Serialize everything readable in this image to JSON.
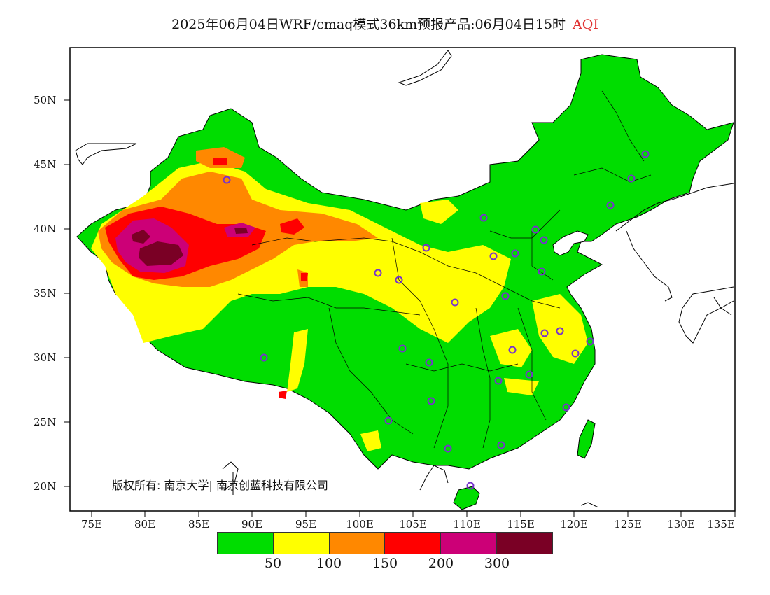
{
  "title": {
    "main": "2025年06月04日WRF/cmaq模式36km预报产品:06月04日15时",
    "variable": "AQI",
    "variable_color": "#e03030"
  },
  "copyright": "版权所有: 南京大学| 南京创蓝科技有限公司",
  "lat_labels": [
    "50N",
    "45N",
    "40N",
    "35N",
    "30N",
    "25N",
    "20N"
  ],
  "lon_labels": [
    "75E",
    "80E",
    "85E",
    "90E",
    "95E",
    "100E",
    "105E",
    "110E",
    "115E",
    "120E",
    "125E",
    "130E",
    "135E"
  ],
  "colorbar": {
    "colors": [
      "#00dd00",
      "#ffff00",
      "#ff8800",
      "#ff0000",
      "#cc0077",
      "#7a0025"
    ],
    "levels": [
      "50",
      "100",
      "150",
      "200",
      "300"
    ]
  },
  "map_colors": {
    "good": "#00dd00",
    "moderate": "#ffff00",
    "sensitive": "#ff8800",
    "unhealthy": "#ff0000",
    "very_unhealthy": "#cc0077",
    "hazardous": "#7a0025",
    "station_marker": "#7733cc"
  }
}
